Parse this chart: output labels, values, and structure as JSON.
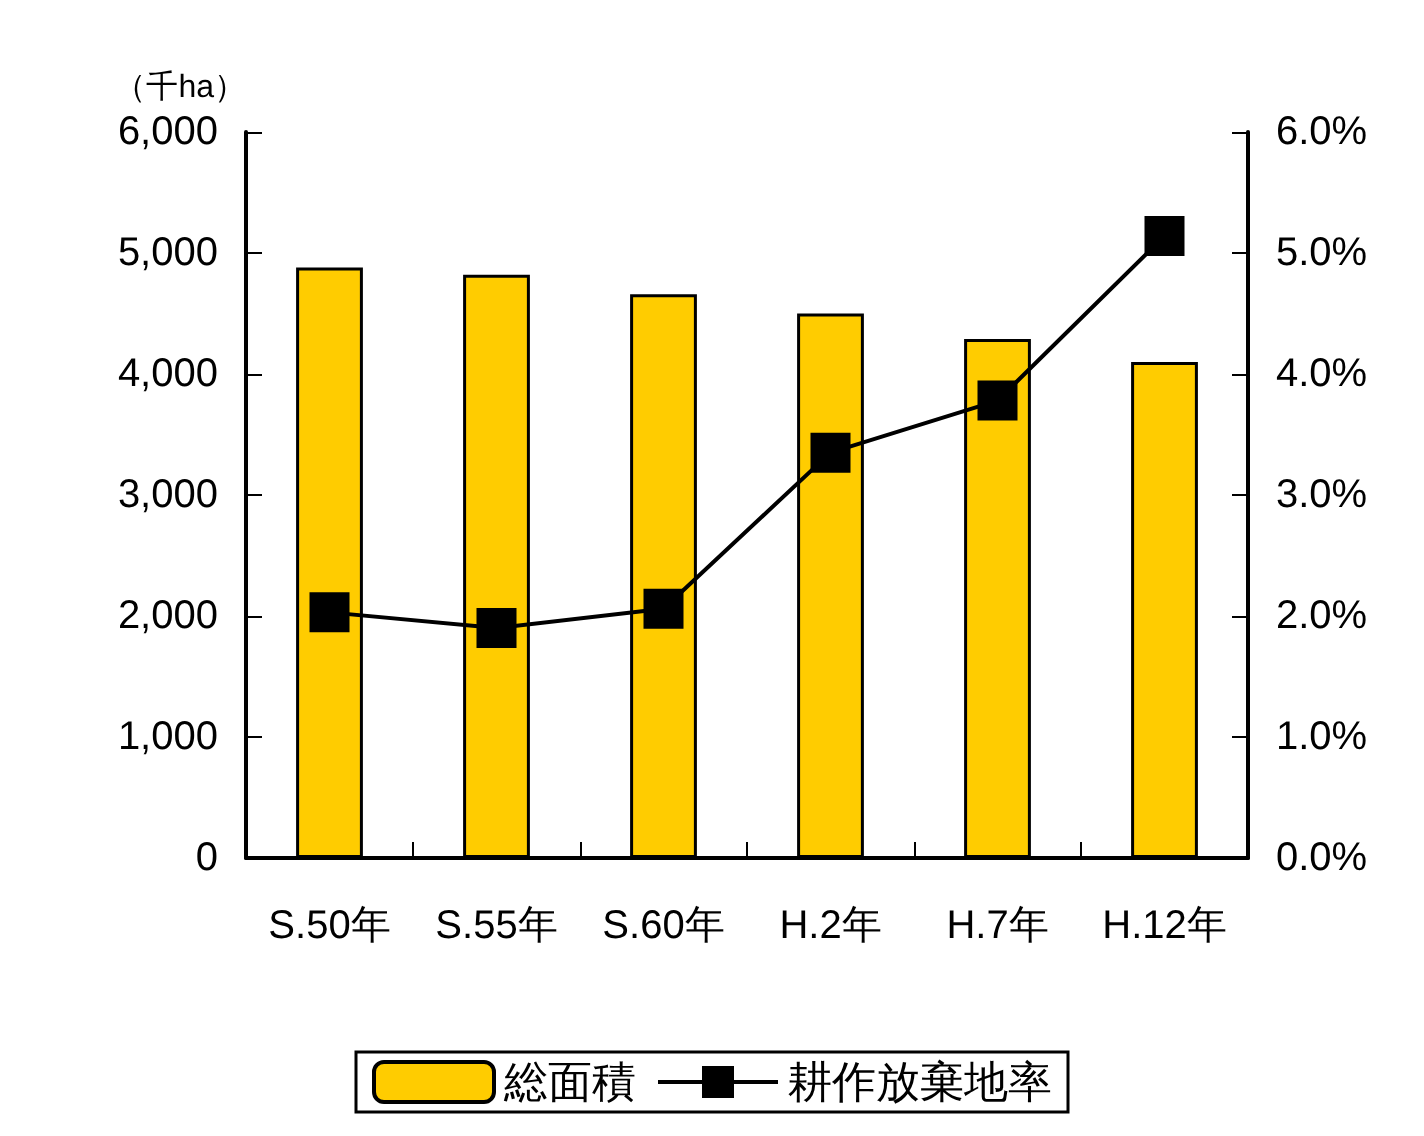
{
  "chart_data": {
    "type": "bar",
    "ylabel": "（千ha）",
    "categories": [
      "S.50年",
      "S.55年",
      "S.60年",
      "H.2年",
      "H.7年",
      "H.12年"
    ],
    "series": [
      {
        "name": "総面積",
        "color": "#ffcc00",
        "values": [
          4880,
          4820,
          4660,
          4500,
          4290,
          4100
        ]
      },
      {
        "name": "耕作放棄地率",
        "type": "line",
        "axis": "y2",
        "color": "#000000",
        "marker": "square",
        "line_style": "solid",
        "values": [
          2.03,
          1.9,
          2.06,
          3.35,
          3.78,
          5.14
        ]
      }
    ],
    "ylim": [
      0,
      6000
    ],
    "yticks": [
      0,
      {
        "value": 1000,
        "label": "1,000"
      },
      {
        "value": 2000,
        "label": "2,000"
      },
      {
        "value": 3000,
        "label": "3,000"
      },
      {
        "value": 4000,
        "label": "4,000"
      },
      {
        "value": 5000,
        "label": "5,000"
      },
      {
        "value": 6000,
        "label": "6,000"
      }
    ],
    "y2lim": [
      0,
      6
    ],
    "y2ticks": [
      {
        "value": 0,
        "label": "0.0%"
      },
      {
        "value": 1,
        "label": "1.0%"
      },
      {
        "value": 2,
        "label": "2.0%"
      },
      {
        "value": 3,
        "label": "3.0%"
      },
      {
        "value": 4,
        "label": "4.0%"
      },
      {
        "value": 5,
        "label": "5.0%"
      },
      {
        "value": 6,
        "label": "6.0%"
      }
    ],
    "grid": false,
    "legend": "bottom"
  }
}
